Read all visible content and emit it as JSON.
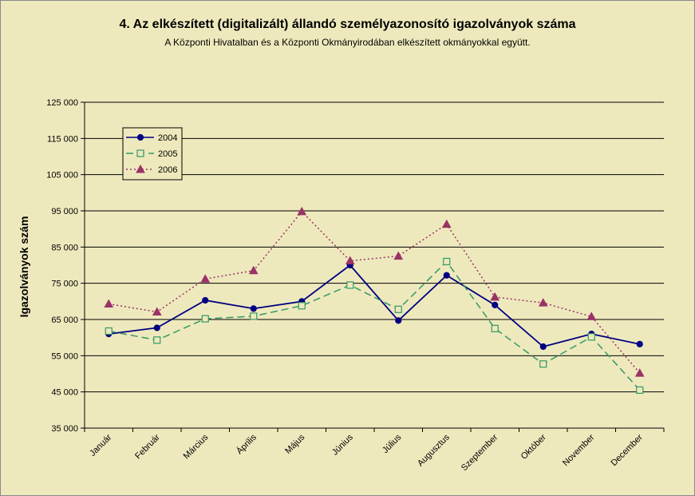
{
  "chart_data": {
    "type": "line",
    "title": "4. Az elkészített (digitalizált) állandó személyazonosító igazolványok száma",
    "subtitle": "A Központi Hivatalban és a Központi Okmányirodában elkészített okmányokkal együtt.",
    "ylabel": "Igazolványok szám",
    "xlabel": "",
    "ylim": [
      35000,
      125000
    ],
    "yticks": [
      35000,
      45000,
      55000,
      65000,
      75000,
      85000,
      95000,
      105000,
      115000,
      125000
    ],
    "ytick_labels": [
      "35 000",
      "45 000",
      "55 000",
      "65 000",
      "75 000",
      "85 000",
      "95 000",
      "105 000",
      "115 000",
      "125 000"
    ],
    "grid": true,
    "legend_position": "top-left",
    "categories": [
      "Január",
      "Február",
      "Március",
      "Április",
      "Május",
      "Június",
      "Július",
      "Augusztus",
      "Szeptember",
      "Október",
      "November",
      "December"
    ],
    "series": [
      {
        "name": "2004",
        "color": "#000080",
        "marker": "circle",
        "dash": "solid",
        "values": [
          61000,
          62700,
          70300,
          68000,
          70000,
          80000,
          64700,
          77200,
          69000,
          57500,
          61000,
          58200
        ]
      },
      {
        "name": "2005",
        "color": "#339966",
        "marker": "square-open",
        "dash": "dashed",
        "values": [
          61800,
          59300,
          65200,
          65900,
          68800,
          74500,
          67800,
          81000,
          62500,
          52700,
          60200,
          45500
        ]
      },
      {
        "name": "2006",
        "color": "#993366",
        "marker": "triangle",
        "dash": "dotted",
        "values": [
          69300,
          67100,
          76200,
          78500,
          94800,
          81200,
          82500,
          91300,
          71200,
          69600,
          65800,
          50200
        ]
      }
    ]
  }
}
